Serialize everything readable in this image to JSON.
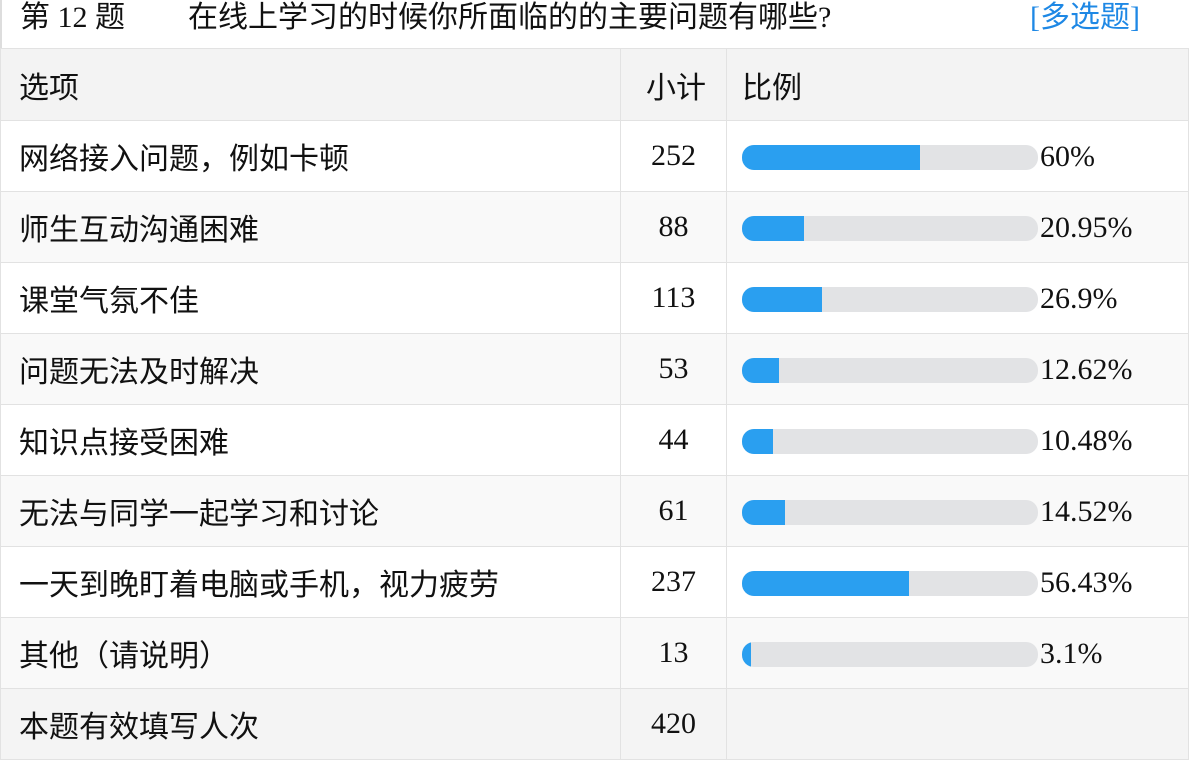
{
  "question": {
    "number": "第 12 题",
    "text": "在线上学习的时候你所面临的的主要问题有哪些?",
    "type": "[多选题]"
  },
  "table": {
    "headers": [
      "选项",
      "小计",
      "比例"
    ],
    "rows": [
      {
        "option": "网络接入问题，例如卡顿",
        "count": "252",
        "percent": "60%",
        "value": 60
      },
      {
        "option": "师生互动沟通困难",
        "count": "88",
        "percent": "20.95%",
        "value": 20.95
      },
      {
        "option": "课堂气氛不佳",
        "count": "113",
        "percent": "26.9%",
        "value": 26.9
      },
      {
        "option": "问题无法及时解决",
        "count": "53",
        "percent": "12.62%",
        "value": 12.62
      },
      {
        "option": "知识点接受困难",
        "count": "44",
        "percent": "10.48%",
        "value": 10.48
      },
      {
        "option": "无法与同学一起学习和讨论",
        "count": "61",
        "percent": "14.52%",
        "value": 14.52
      },
      {
        "option": "一天到晚盯着电脑或手机，视力疲劳",
        "count": "237",
        "percent": "56.43%",
        "value": 56.43
      },
      {
        "option": "其他（请说明）",
        "count": "13",
        "percent": "3.1%",
        "value": 3.1
      }
    ],
    "footer": {
      "label": "本题有效填写人次",
      "count": "420"
    }
  },
  "colors": {
    "bar_fill": "#2a9ff0",
    "bar_track": "#e2e3e5",
    "type_link": "#1e88e5"
  }
}
